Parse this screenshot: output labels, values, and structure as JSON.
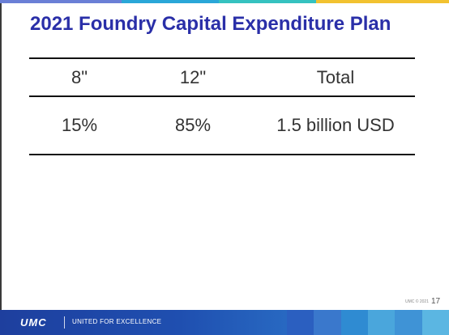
{
  "slide": {
    "title": "2021 Foundry Capital Expenditure Plan",
    "table": {
      "headers": [
        "8\"",
        "12\"",
        "Total"
      ],
      "rows": [
        [
          "15%",
          "85%",
          "1.5 billion USD"
        ]
      ]
    },
    "footer": {
      "copyright": "UMC © 2021",
      "page_number": "17",
      "logo_text": "UMC",
      "tagline": "UNITED FOR EXCELLENCE"
    }
  },
  "colors": {
    "title": "#2a2fa8",
    "footer_bar": "#1f4fb0",
    "top_bar": [
      "#6a7fd6",
      "#2aa7d8",
      "#35c2c0",
      "#f2c230"
    ],
    "footer_tiles": [
      "#2b5fc0",
      "#3a78cc",
      "#2f8bd2",
      "#4aa6dc",
      "#3f93d6",
      "#5bb6e2"
    ]
  }
}
